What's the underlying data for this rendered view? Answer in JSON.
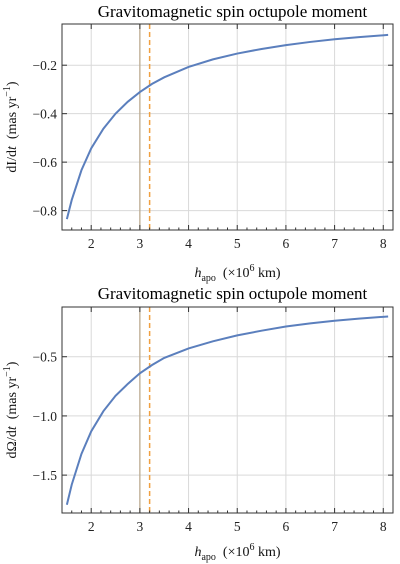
{
  "chart_data": [
    {
      "type": "line",
      "title": "Gravitomagnetic spin octupole moment",
      "xlabel": "h_apo (×10^6 km)",
      "xlabel_parts": {
        "main": "h",
        "sub": "apo",
        "pre": "(×10",
        "sup": "6",
        "post": " km)"
      },
      "ylabel": "dI/dt (mas yr^-1)",
      "ylabel_parts": {
        "main": "dI/d",
        "t": "t",
        "pre": "(mas yr",
        "sup": "−1",
        "post": ")"
      },
      "xlim": [
        1.4,
        8.2
      ],
      "ylim": [
        -0.88,
        -0.03
      ],
      "xticks": [
        2,
        3,
        4,
        5,
        6,
        7,
        8
      ],
      "yticks": [
        -0.8,
        -0.6,
        -0.4,
        -0.2
      ],
      "ytick_labels": [
        "−0.8",
        "−0.6",
        "−0.4",
        "−0.2"
      ],
      "grid": true,
      "vlines": [
        {
          "x": 3.0,
          "style": "solid",
          "color": "#b8a68a"
        },
        {
          "x": 3.2,
          "style": "dashed",
          "color": "#f0a040"
        }
      ],
      "series": [
        {
          "color": "#5b7fbd",
          "x": [
            1.5,
            1.6,
            1.8,
            2.0,
            2.25,
            2.5,
            2.75,
            3.0,
            3.25,
            3.5,
            4.0,
            4.5,
            5.0,
            5.5,
            6.0,
            6.5,
            7.0,
            7.5,
            8.1
          ],
          "y": [
            -0.835,
            -0.756,
            -0.633,
            -0.543,
            -0.462,
            -0.4,
            -0.351,
            -0.311,
            -0.277,
            -0.25,
            -0.207,
            -0.176,
            -0.152,
            -0.133,
            -0.117,
            -0.104,
            -0.093,
            -0.084,
            -0.075
          ]
        }
      ]
    },
    {
      "type": "line",
      "title": "Gravitomagnetic spin octupole moment",
      "xlabel": "h_apo (×10^6 km)",
      "xlabel_parts": {
        "main": "h",
        "sub": "apo",
        "pre": "(×10",
        "sup": "6",
        "post": " km)"
      },
      "ylabel": "dΩ/dt (mas yr^-1)",
      "ylabel_parts": {
        "main": "dΩ/d",
        "t": "t",
        "pre": "(mas yr",
        "sup": "−1",
        "post": ")"
      },
      "xlim": [
        1.4,
        8.2
      ],
      "ylim": [
        -1.82,
        -0.08
      ],
      "xticks": [
        2,
        3,
        4,
        5,
        6,
        7,
        8
      ],
      "yticks": [
        -1.5,
        -1.0,
        -0.5
      ],
      "ytick_labels": [
        "−1.5",
        "−1.0",
        "−0.5"
      ],
      "grid": true,
      "vlines": [
        {
          "x": 3.0,
          "style": "solid",
          "color": "#b8a68a"
        },
        {
          "x": 3.2,
          "style": "dashed",
          "color": "#f0a040"
        }
      ],
      "series": [
        {
          "color": "#5b7fbd",
          "x": [
            1.5,
            1.6,
            1.8,
            2.0,
            2.25,
            2.5,
            2.75,
            3.0,
            3.25,
            3.5,
            4.0,
            4.5,
            5.0,
            5.5,
            6.0,
            6.5,
            7.0,
            7.5,
            8.1
          ],
          "y": [
            -1.75,
            -1.58,
            -1.32,
            -1.13,
            -0.96,
            -0.83,
            -0.73,
            -0.64,
            -0.57,
            -0.51,
            -0.43,
            -0.37,
            -0.32,
            -0.28,
            -0.245,
            -0.218,
            -0.196,
            -0.178,
            -0.16
          ]
        }
      ]
    }
  ]
}
